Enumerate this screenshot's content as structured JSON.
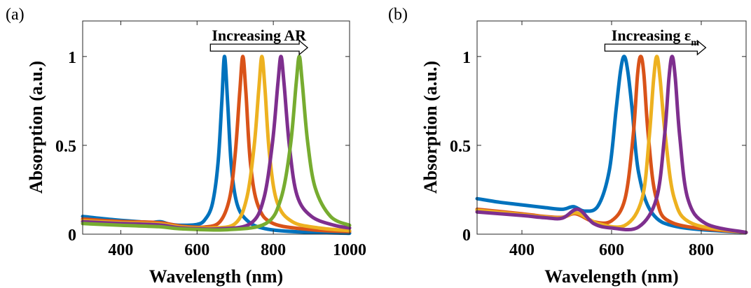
{
  "colors": [
    "#0072BD",
    "#D95319",
    "#EDB120",
    "#7E2F8E",
    "#77AC30"
  ],
  "chart_data": [
    {
      "panel_label": "(a)",
      "type": "line",
      "xlabel": "Wavelength (nm)",
      "ylabel": "Absorption (a.u.)",
      "xlim": [
        300,
        1000
      ],
      "ylim": [
        0,
        1.2
      ],
      "xticks": [
        400,
        600,
        800,
        1000
      ],
      "yticks": [
        0,
        0.5,
        1
      ],
      "ytick_labels": [
        "0",
        "0.5",
        "1"
      ],
      "grid": false,
      "annotation": {
        "text": "Increasing AR",
        "sub": "",
        "arrow_from": 635,
        "arrow_to": 890,
        "y": 1.05
      },
      "series": [
        {
          "color_index": 0,
          "x": [
            300,
            350,
            400,
            450,
            480,
            505,
            530,
            560,
            600,
            620,
            640,
            655,
            665,
            672,
            680,
            690,
            705,
            730,
            770,
            850,
            1000
          ],
          "y": [
            0.1,
            0.088,
            0.078,
            0.07,
            0.066,
            0.07,
            0.055,
            0.05,
            0.055,
            0.08,
            0.17,
            0.4,
            0.75,
            1.0,
            0.75,
            0.38,
            0.17,
            0.08,
            0.035,
            0.015,
            0.005
          ]
        },
        {
          "color_index": 1,
          "x": [
            300,
            400,
            500,
            560,
            620,
            660,
            685,
            700,
            712,
            720,
            728,
            740,
            760,
            800,
            900,
            1000
          ],
          "y": [
            0.085,
            0.072,
            0.065,
            0.045,
            0.04,
            0.07,
            0.2,
            0.45,
            0.8,
            1.0,
            0.8,
            0.4,
            0.16,
            0.06,
            0.025,
            0.015
          ]
        },
        {
          "color_index": 2,
          "x": [
            300,
            400,
            500,
            560,
            640,
            700,
            730,
            750,
            762,
            770,
            778,
            790,
            810,
            850,
            920,
            1000
          ],
          "y": [
            0.075,
            0.065,
            0.058,
            0.04,
            0.035,
            0.06,
            0.2,
            0.5,
            0.82,
            1.0,
            0.82,
            0.45,
            0.18,
            0.07,
            0.035,
            0.02
          ]
        },
        {
          "color_index": 3,
          "x": [
            300,
            400,
            500,
            560,
            660,
            740,
            775,
            798,
            812,
            820,
            828,
            842,
            862,
            900,
            960,
            1000
          ],
          "y": [
            0.07,
            0.06,
            0.052,
            0.035,
            0.03,
            0.06,
            0.2,
            0.52,
            0.85,
            1.0,
            0.85,
            0.5,
            0.22,
            0.1,
            0.05,
            0.035
          ]
        },
        {
          "color_index": 4,
          "x": [
            300,
            400,
            500,
            560,
            680,
            780,
            820,
            845,
            860,
            868,
            876,
            890,
            910,
            950,
            1000
          ],
          "y": [
            0.06,
            0.05,
            0.042,
            0.03,
            0.025,
            0.06,
            0.2,
            0.5,
            0.85,
            1.0,
            0.85,
            0.52,
            0.26,
            0.1,
            0.05
          ]
        }
      ]
    },
    {
      "panel_label": "(b)",
      "type": "line",
      "xlabel": "Wavelength (nm)",
      "ylabel": "Absorption (a.u.)",
      "xlim": [
        300,
        900
      ],
      "ylim": [
        0,
        1.2
      ],
      "xticks": [
        400,
        600,
        800
      ],
      "yticks": [
        0,
        0.5,
        1
      ],
      "ytick_labels": [
        "0",
        "0.5",
        "1"
      ],
      "grid": false,
      "annotation": {
        "text": "Increasing ε",
        "sub": "m",
        "arrow_from": 585,
        "arrow_to": 810,
        "y": 1.05
      },
      "series": [
        {
          "color_index": 0,
          "x": [
            300,
            350,
            400,
            450,
            490,
            515,
            540,
            570,
            595,
            610,
            620,
            628,
            636,
            646,
            660,
            690,
            750,
            900
          ],
          "y": [
            0.2,
            0.18,
            0.165,
            0.15,
            0.14,
            0.155,
            0.13,
            0.16,
            0.36,
            0.7,
            0.92,
            1.0,
            0.92,
            0.7,
            0.35,
            0.12,
            0.04,
            0.01
          ]
        },
        {
          "color_index": 1,
          "x": [
            300,
            400,
            450,
            490,
            520,
            560,
            600,
            630,
            648,
            658,
            665,
            672,
            682,
            700,
            740,
            900
          ],
          "y": [
            0.14,
            0.115,
            0.1,
            0.095,
            0.115,
            0.07,
            0.075,
            0.2,
            0.55,
            0.9,
            1.0,
            0.9,
            0.55,
            0.2,
            0.06,
            0.01
          ]
        },
        {
          "color_index": 2,
          "x": [
            300,
            400,
            450,
            490,
            522,
            570,
            630,
            668,
            684,
            694,
            701,
            708,
            720,
            740,
            780,
            900
          ],
          "y": [
            0.135,
            0.11,
            0.097,
            0.093,
            0.12,
            0.06,
            0.05,
            0.2,
            0.55,
            0.88,
            1.0,
            0.88,
            0.55,
            0.2,
            0.06,
            0.01
          ]
        },
        {
          "color_index": 3,
          "x": [
            300,
            400,
            450,
            490,
            525,
            560,
            600,
            660,
            700,
            718,
            728,
            735,
            742,
            752,
            770,
            810,
            900
          ],
          "y": [
            0.125,
            0.105,
            0.093,
            0.09,
            0.14,
            0.06,
            0.035,
            0.04,
            0.2,
            0.55,
            0.88,
            1.0,
            0.88,
            0.55,
            0.2,
            0.06,
            0.01
          ]
        }
      ]
    }
  ]
}
